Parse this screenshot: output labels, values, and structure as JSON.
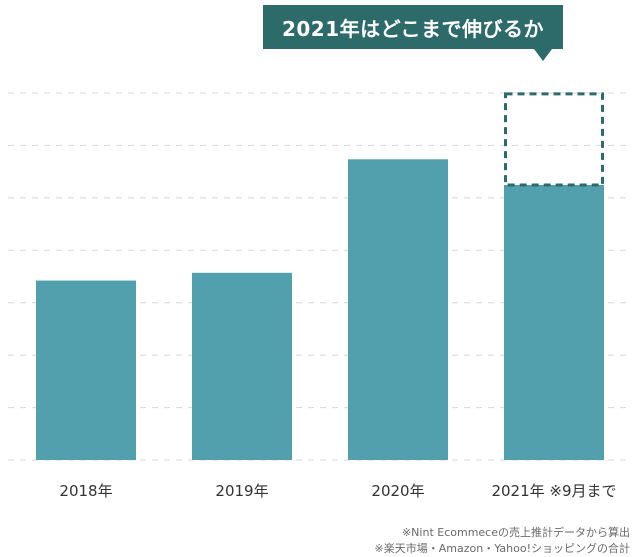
{
  "callout": {
    "text": "2021年はどこまで伸びるか"
  },
  "notes": [
    "※Nint Ecommeceの売上推計データから算出",
    "※楽天市場・Amazon・Yahoo!ショッピングの合計"
  ],
  "chart_data": {
    "type": "bar",
    "categories": [
      "2018年",
      "2019年",
      "2020年",
      "2021年 ※9月まで"
    ],
    "values": [
      37,
      38.6,
      62,
      56.7
    ],
    "projection": {
      "category": "2021年 ※9月まで",
      "value": 75.5,
      "style": "dashed"
    },
    "ylim": [
      0,
      80
    ],
    "grid": true,
    "colors": {
      "bar": "#52a0ae",
      "projection_border": "#2c6b6a",
      "grid": "#d8d8d8"
    }
  }
}
